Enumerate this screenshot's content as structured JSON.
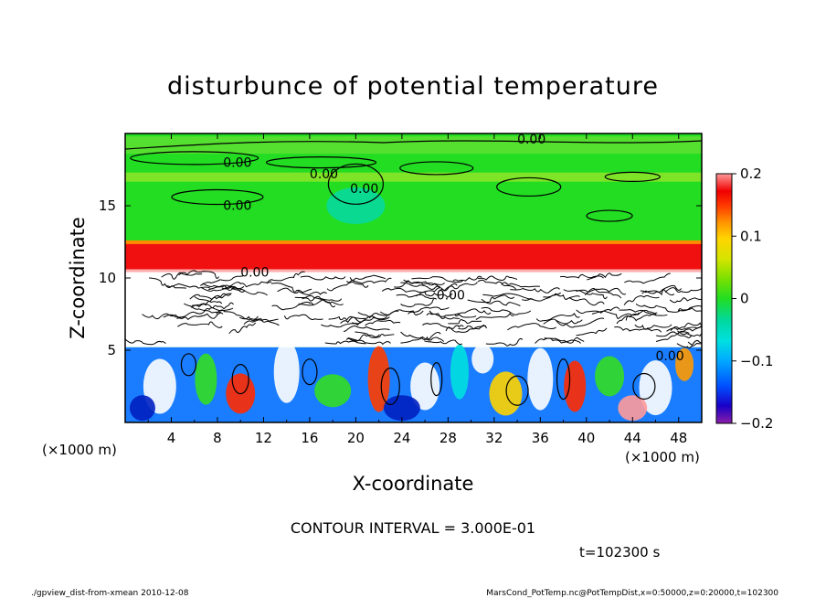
{
  "chart_data": {
    "type": "heatmap",
    "title": "disturbunce of potential temperature",
    "xlabel": "X-coordinate",
    "ylabel": "Z-coordinate",
    "x_unit_left": "(×1000 m)",
    "x_unit_right": "(×1000 m)",
    "xlim": [
      0,
      50
    ],
    "ylim": [
      0,
      20
    ],
    "x_ticks": [
      4,
      8,
      12,
      16,
      20,
      24,
      28,
      32,
      36,
      40,
      44,
      48
    ],
    "y_ticks": [
      5,
      10,
      15
    ],
    "colorbar": {
      "range": [
        -0.2,
        0.2
      ],
      "ticks": [
        {
          "value": 0.2,
          "label": "0.2"
        },
        {
          "value": 0.1,
          "label": "0.1"
        },
        {
          "value": 0,
          "label": "0"
        },
        {
          "value": -0.1,
          "label": "−0.1"
        },
        {
          "value": -0.2,
          "label": "−0.2"
        }
      ],
      "colors": [
        "#8a1ea8",
        "#1a00c8",
        "#0050ff",
        "#00a8ff",
        "#00e0e0",
        "#00d8a0",
        "#22dd22",
        "#7be000",
        "#d6e400",
        "#ffd400",
        "#ff9a00",
        "#ff3c00",
        "#f00000",
        "#ff9a9a"
      ]
    },
    "contour_labels": [
      "0.00",
      "0.00",
      "0.00",
      "0.00",
      "0.00",
      "0.00",
      "0.00",
      "0.00"
    ],
    "contour_interval_text": "CONTOUR INTERVAL = 3.000E-01",
    "time_text": "t=102300 s"
  },
  "footer": {
    "left": "./gpview_dist-from-xmean   2010-12-08",
    "right": "MarsCond_PotTemp.nc@PotTempDist,x=0:50000,z=0:20000,t=102300"
  },
  "colors": {
    "green": "#33dd22",
    "red": "#f01010",
    "white": "#ffffff",
    "blue": "#0044ff"
  }
}
